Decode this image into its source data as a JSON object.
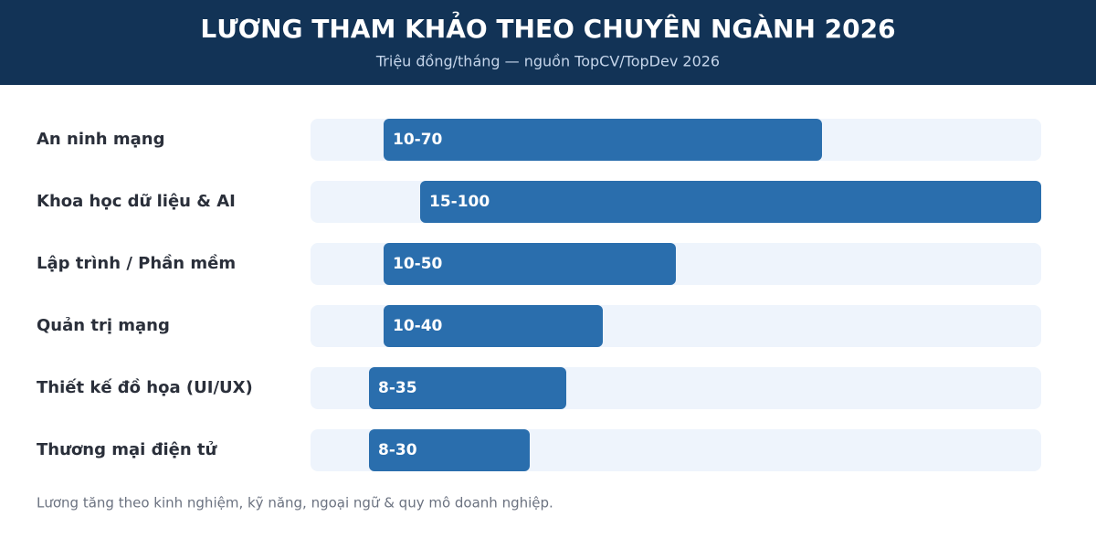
{
  "chart_data": {
    "type": "range-bar",
    "title": "LƯƠNG THAM KHẢO THEO CHUYÊN NGÀNH 2026",
    "subtitle": "Triệu đồng/tháng — nguồn TopCV/TopDev 2026",
    "categories": [
      "An ninh mạng",
      "Khoa học dữ liệu & AI",
      "Lập trình / Phần mềm",
      "Quản trị mạng",
      "Thiết kế đồ họa (UI/UX)",
      "Thương mại điện tử"
    ],
    "low": [
      10,
      15,
      10,
      10,
      8,
      8
    ],
    "high": [
      70,
      100,
      50,
      40,
      35,
      30
    ],
    "value_labels": [
      "10-70",
      "15-100",
      "10-50",
      "10-40",
      "8-35",
      "8-30"
    ],
    "color": "#2a6ead",
    "xlim": [
      0,
      100
    ],
    "note": "Lương tăng theo kinh nghiệm, kỹ năng, ngoại ngữ & quy mô doanh nghiệp."
  }
}
